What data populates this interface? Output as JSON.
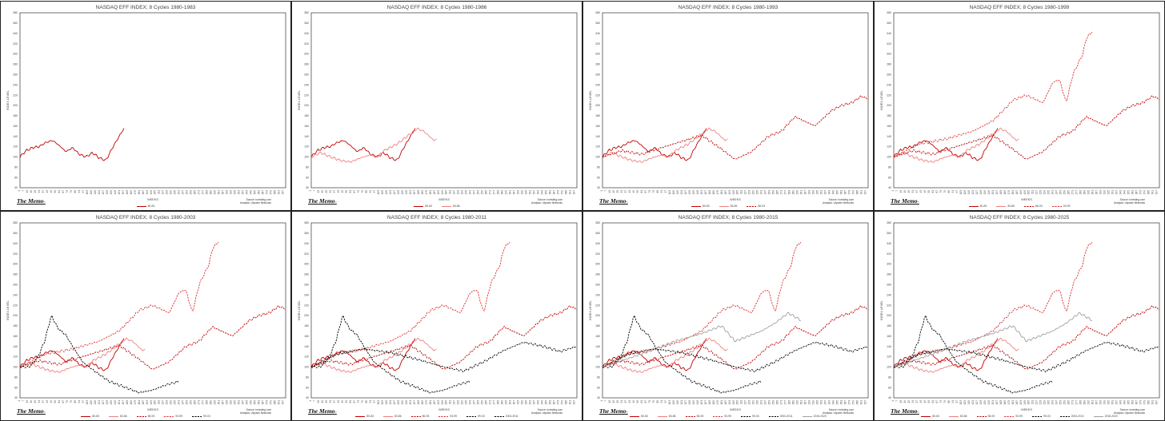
{
  "brand": "The Memo",
  "brand_suffix": "®",
  "source_line": "Source: investing.com",
  "analysis_line": "Analysis: Ulysses Networks",
  "colors": {
    "s1980": "#c00000",
    "s1983": "#f08080",
    "s1986": "#c00000",
    "s1989": "#e03030",
    "s1999": "#000000",
    "s2004": "#000000",
    "s2015": "#a0a0a0"
  },
  "chart_data": [
    {
      "type": "line",
      "title": "NASDAQ EFF INDEX; 8 Cycles 1980-1983",
      "xlabel": "WEEKS",
      "ylabel": "INDEX LEVEL",
      "ylim": [
        40,
        380
      ],
      "ytick_step": 20,
      "xlim": [
        1,
        400
      ],
      "xtick_step": 6,
      "legend_position": "bottom",
      "series": [
        {
          "name": "80-83",
          "key": "s1980",
          "style": "solid"
        }
      ]
    },
    {
      "type": "line",
      "title": "NASDAQ EFF INDEX; 8 Cycles 1980-1986",
      "xlabel": "WEEKS",
      "ylabel": "INDEX LEVEL",
      "ylim": [
        40,
        380
      ],
      "ytick_step": 20,
      "xlim": [
        1,
        400
      ],
      "xtick_step": 6,
      "legend_position": "bottom",
      "series": [
        {
          "name": "80-83",
          "key": "s1980",
          "style": "solid"
        },
        {
          "name": "83-86",
          "key": "s1983",
          "style": "solid"
        }
      ]
    },
    {
      "type": "line",
      "title": "NASDAQ EFF INDEX; 8 Cycles 1980-1993",
      "xlabel": "WEEKS",
      "ylabel": "INDEX LEVEL",
      "ylim": [
        40,
        380
      ],
      "ytick_step": 20,
      "xlim": [
        1,
        400
      ],
      "xtick_step": 6,
      "legend_position": "bottom",
      "series": [
        {
          "name": "80-83",
          "key": "s1980",
          "style": "solid"
        },
        {
          "name": "83-86",
          "key": "s1983",
          "style": "solid"
        },
        {
          "name": "86-93",
          "key": "s1986",
          "style": "dashed"
        }
      ]
    },
    {
      "type": "line",
      "title": "NASDAQ EFF INDEX; 8 Cycles 1980-1999",
      "xlabel": "WEEKS",
      "ylabel": "INDEX LEVEL",
      "ylim": [
        40,
        380
      ],
      "ytick_step": 20,
      "xlim": [
        1,
        400
      ],
      "xtick_step": 6,
      "legend_position": "bottom",
      "series": [
        {
          "name": "80-83",
          "key": "s1980",
          "style": "solid"
        },
        {
          "name": "83-86",
          "key": "s1983",
          "style": "solid"
        },
        {
          "name": "86-93",
          "key": "s1986",
          "style": "dashed"
        },
        {
          "name": "93-99",
          "key": "s1989",
          "style": "dashed"
        }
      ]
    },
    {
      "type": "line",
      "title": "NASDAQ EFF INDEX; 8 Cycles 1980-2003",
      "xlabel": "WEEKS",
      "ylabel": "INDEX LEVEL",
      "ylim": [
        40,
        380
      ],
      "ytick_step": 20,
      "xlim": [
        1,
        400
      ],
      "xtick_step": 6,
      "legend_position": "bottom",
      "series": [
        {
          "name": "80-83",
          "key": "s1980",
          "style": "solid"
        },
        {
          "name": "83-86",
          "key": "s1983",
          "style": "solid"
        },
        {
          "name": "86-93",
          "key": "s1986",
          "style": "dashed"
        },
        {
          "name": "93-99",
          "key": "s1989",
          "style": "dashed"
        },
        {
          "name": "99-03",
          "key": "s1999",
          "style": "dashed"
        }
      ]
    },
    {
      "type": "line",
      "title": "NASDAQ EFF INDEX; 8 Cycles 1980-2011",
      "xlabel": "WEEKS",
      "ylabel": "INDEX LEVEL",
      "ylim": [
        40,
        380
      ],
      "ytick_step": 20,
      "xlim": [
        1,
        400
      ],
      "xtick_step": 6,
      "legend_position": "bottom",
      "series": [
        {
          "name": "80-83",
          "key": "s1980",
          "style": "solid"
        },
        {
          "name": "83-86",
          "key": "s1983",
          "style": "solid"
        },
        {
          "name": "86-93",
          "key": "s1986",
          "style": "dashed"
        },
        {
          "name": "93-99",
          "key": "s1989",
          "style": "dashed"
        },
        {
          "name": "99-03",
          "key": "s1999",
          "style": "dashed"
        },
        {
          "name": "2004-2011",
          "key": "s2004",
          "style": "dashed"
        }
      ]
    },
    {
      "type": "line",
      "title": "NASDAQ EFF INDEX; 8 Cycles 1980-2015",
      "xlabel": "WEEKS",
      "ylabel": "INDEX LEVEL",
      "ylim": [
        40,
        380
      ],
      "ytick_step": 20,
      "xlim": [
        1,
        400
      ],
      "xtick_step": 6,
      "legend_position": "bottom",
      "series": [
        {
          "name": "80-83",
          "key": "s1980",
          "style": "solid"
        },
        {
          "name": "83-86",
          "key": "s1983",
          "style": "solid"
        },
        {
          "name": "86-93",
          "key": "s1986",
          "style": "dashed"
        },
        {
          "name": "93-99",
          "key": "s1989",
          "style": "dashed"
        },
        {
          "name": "99-03",
          "key": "s1999",
          "style": "dashed"
        },
        {
          "name": "2004-2011",
          "key": "s2004",
          "style": "dashed"
        },
        {
          "name": "2015-2020",
          "key": "s2015",
          "style": "solid"
        }
      ]
    },
    {
      "type": "line",
      "title": "NASDAQ EFF INDEX; 8 Cycles 1980-2025",
      "xlabel": "WEEKS",
      "ylabel": "INDEX LEVEL",
      "ylim": [
        40,
        380
      ],
      "ytick_step": 20,
      "xlim": [
        1,
        400
      ],
      "xtick_step": 6,
      "legend_position": "bottom",
      "series": [
        {
          "name": "80-83",
          "key": "s1980",
          "style": "solid"
        },
        {
          "name": "83-86",
          "key": "s1983",
          "style": "solid"
        },
        {
          "name": "86-93",
          "key": "s1986",
          "style": "dashed"
        },
        {
          "name": "93-99",
          "key": "s1989",
          "style": "dashed"
        },
        {
          "name": "99-03",
          "key": "s1999",
          "style": "dashed"
        },
        {
          "name": "2004-2011",
          "key": "s2004",
          "style": "dashed"
        },
        {
          "name": "2015-2020",
          "key": "s2015",
          "style": "solid"
        }
      ]
    }
  ],
  "series_values": {
    "s1980": {
      "x": [
        1,
        10,
        20,
        30,
        40,
        50,
        60,
        70,
        80,
        90,
        100,
        110,
        120,
        130,
        140,
        150,
        157
      ],
      "y": [
        100,
        112,
        118,
        120,
        128,
        132,
        122,
        110,
        118,
        105,
        100,
        108,
        98,
        93,
        118,
        140,
        155
      ]
    },
    "s1983": {
      "x": [
        1,
        15,
        30,
        45,
        60,
        75,
        90,
        100,
        110,
        130,
        150,
        160,
        170,
        180,
        185,
        190
      ],
      "y": [
        100,
        108,
        100,
        93,
        90,
        98,
        104,
        100,
        112,
        125,
        145,
        155,
        150,
        138,
        132,
        135
      ]
    },
    "s1986": {
      "x": [
        1,
        30,
        60,
        90,
        120,
        150,
        180,
        200,
        225,
        250,
        270,
        290,
        300,
        320,
        345,
        360,
        375,
        390,
        400
      ],
      "y": [
        100,
        112,
        105,
        118,
        130,
        142,
        115,
        95,
        110,
        140,
        150,
        178,
        172,
        160,
        190,
        200,
        205,
        218,
        212
      ]
    },
    "s1989": {
      "x": [
        1,
        40,
        80,
        120,
        150,
        180,
        200,
        225,
        240,
        250,
        260,
        270,
        285,
        290,
        300
      ],
      "y": [
        100,
        125,
        135,
        150,
        170,
        210,
        220,
        205,
        245,
        250,
        205,
        260,
        300,
        330,
        345
      ]
    },
    "s1999": {
      "x": [
        1,
        15,
        28,
        38,
        48,
        58,
        70,
        80,
        95,
        115,
        135,
        160,
        180,
        200,
        220,
        240
      ],
      "y": [
        100,
        100,
        120,
        150,
        200,
        175,
        162,
        140,
        110,
        90,
        72,
        60,
        50,
        55,
        65,
        72
      ]
    },
    "s2004": {
      "x": [
        1,
        40,
        80,
        120,
        160,
        200,
        230,
        260,
        290,
        320,
        350,
        375,
        400
      ],
      "y": [
        100,
        125,
        135,
        128,
        115,
        100,
        92,
        110,
        132,
        148,
        140,
        130,
        140
      ]
    },
    "s2015": {
      "x": [
        1,
        30,
        70,
        110,
        150,
        180,
        200,
        220,
        240,
        260,
        280,
        300
      ],
      "y": [
        100,
        112,
        130,
        150,
        165,
        180,
        150,
        160,
        170,
        185,
        205,
        190
      ]
    }
  }
}
